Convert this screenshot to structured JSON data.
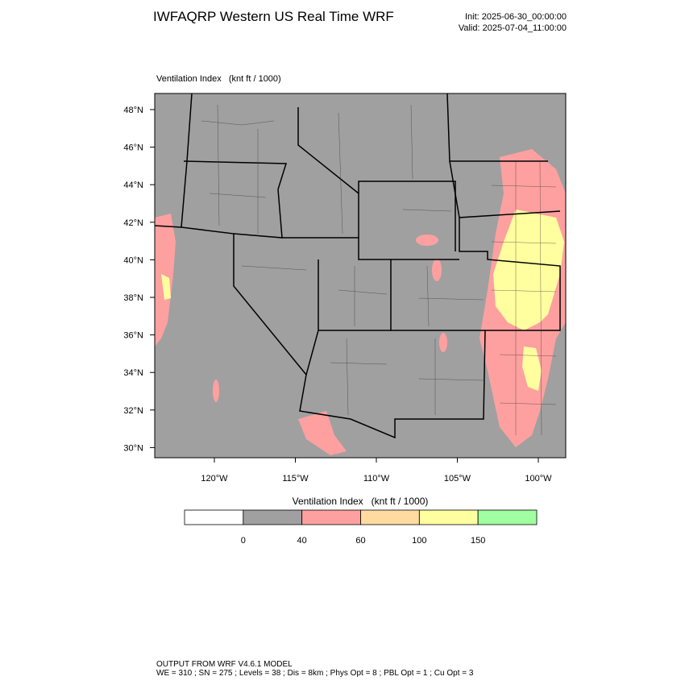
{
  "header": {
    "title": "IWFAQRP Western US Real Time WRF",
    "init": "Init: 2025-06-30_00:00:00",
    "valid": "Valid: 2025-07-04_11:00:00"
  },
  "map": {
    "label": "Ventilation Index   (knt ft / 1000)",
    "lat_labels": [
      "48°N",
      "46°N",
      "44°N",
      "42°N",
      "40°N",
      "38°N",
      "36°N",
      "34°N",
      "32°N",
      "30°N"
    ],
    "lon_labels": [
      "120°W",
      "115°W",
      "110°W",
      "105°W",
      "100°W"
    ]
  },
  "colorbar": {
    "title": "Ventilation Index   (knt ft / 1000)",
    "levels": [
      0,
      40,
      60,
      100,
      150
    ],
    "colors": [
      "#ffffff",
      "#a0a0a0",
      "#ffa0a0",
      "#ffdba0",
      "#ffffa0",
      "#a0ffa0"
    ]
  },
  "footer": {
    "lines": [
      "OUTPUT FROM WRF V4.6.1 MODEL",
      "WE = 310 ; SN = 275 ; Levels = 38 ; Dis = 8km ; Phys Opt = 8 ; PBL Opt = 1 ; Cu Opt = 3"
    ]
  }
}
